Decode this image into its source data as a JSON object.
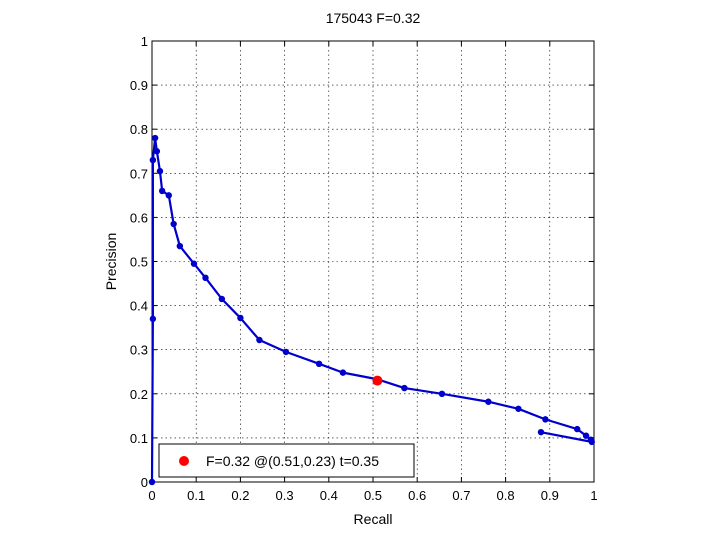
{
  "chart_data": {
    "type": "line",
    "title": "175043 F=0.32",
    "xlabel": "Recall",
    "ylabel": "Precision",
    "xlim": [
      0,
      1
    ],
    "ylim": [
      0,
      1
    ],
    "xticks": [
      "0",
      "0.1",
      "0.2",
      "0.3",
      "0.4",
      "0.5",
      "0.6",
      "0.7",
      "0.8",
      "0.9",
      "1"
    ],
    "yticks": [
      "0",
      "0.1",
      "0.2",
      "0.3",
      "0.4",
      "0.5",
      "0.6",
      "0.7",
      "0.8",
      "0.9",
      "1"
    ],
    "grid": true,
    "series": [
      {
        "color": "#0000cc",
        "marker": "dot",
        "points": [
          [
            0.0,
            0.0
          ],
          [
            0.002,
            0.37
          ],
          [
            0.002,
            0.73
          ],
          [
            0.007,
            0.78
          ],
          [
            0.011,
            0.75
          ],
          [
            0.018,
            0.705
          ],
          [
            0.023,
            0.66
          ],
          [
            0.038,
            0.65
          ],
          [
            0.049,
            0.585
          ],
          [
            0.063,
            0.535
          ],
          [
            0.095,
            0.495
          ],
          [
            0.121,
            0.463
          ],
          [
            0.158,
            0.415
          ],
          [
            0.2,
            0.372
          ],
          [
            0.243,
            0.322
          ],
          [
            0.303,
            0.295
          ],
          [
            0.378,
            0.268
          ],
          [
            0.432,
            0.248
          ],
          [
            0.51,
            0.233
          ],
          [
            0.571,
            0.213
          ],
          [
            0.656,
            0.2
          ],
          [
            0.761,
            0.182
          ],
          [
            0.829,
            0.166
          ],
          [
            0.89,
            0.142
          ],
          [
            0.962,
            0.12
          ],
          [
            0.982,
            0.105
          ],
          [
            0.993,
            0.096
          ],
          [
            0.995,
            0.091
          ],
          [
            0.88,
            0.113
          ]
        ]
      }
    ],
    "best_point": {
      "x": 0.51,
      "y": 0.23,
      "color": "#ff0000"
    },
    "legend": {
      "position": "bottom-left",
      "label": "F=0.32 @(0.51,0.23) t=0.35"
    }
  }
}
